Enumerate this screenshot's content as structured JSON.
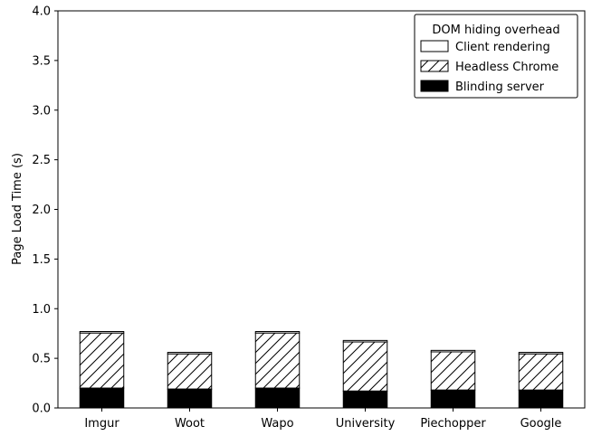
{
  "chart_data": {
    "type": "bar",
    "stacked": true,
    "title": "",
    "xlabel": "",
    "ylabel": "Page Load Time (s)",
    "categories": [
      "Imgur",
      "Woot",
      "Wapo",
      "University",
      "Piechopper",
      "Google"
    ],
    "ylim": [
      0,
      4.0
    ],
    "yticks": [
      {
        "value": 0.0,
        "label": "0.0"
      },
      {
        "value": 0.5,
        "label": "0.5"
      },
      {
        "value": 1.0,
        "label": "1.0"
      },
      {
        "value": 1.5,
        "label": "1.5"
      },
      {
        "value": 2.0,
        "label": "2.0"
      },
      {
        "value": 2.5,
        "label": "2.5"
      },
      {
        "value": 3.0,
        "label": "3.0"
      },
      {
        "value": 3.5,
        "label": "3.5"
      },
      {
        "value": 4.0,
        "label": "4.0"
      }
    ],
    "series": [
      {
        "name": "Blinding server",
        "pattern": "solid",
        "color": "#000000",
        "values": [
          0.2,
          0.19,
          0.2,
          0.17,
          0.18,
          0.18
        ]
      },
      {
        "name": "Headless Chrome",
        "pattern": "hatch",
        "color": "#ffffff",
        "values": [
          0.555,
          0.355,
          0.555,
          0.495,
          0.385,
          0.365
        ]
      },
      {
        "name": "Client rendering",
        "pattern": "empty",
        "color": "#ffffff",
        "values": [
          0.015,
          0.015,
          0.015,
          0.015,
          0.015,
          0.015
        ]
      }
    ],
    "legend": {
      "title": "DOM hiding overhead",
      "position": "top-right",
      "entries": [
        "Client rendering",
        "Headless Chrome",
        "Blinding server"
      ]
    },
    "grid": false
  }
}
